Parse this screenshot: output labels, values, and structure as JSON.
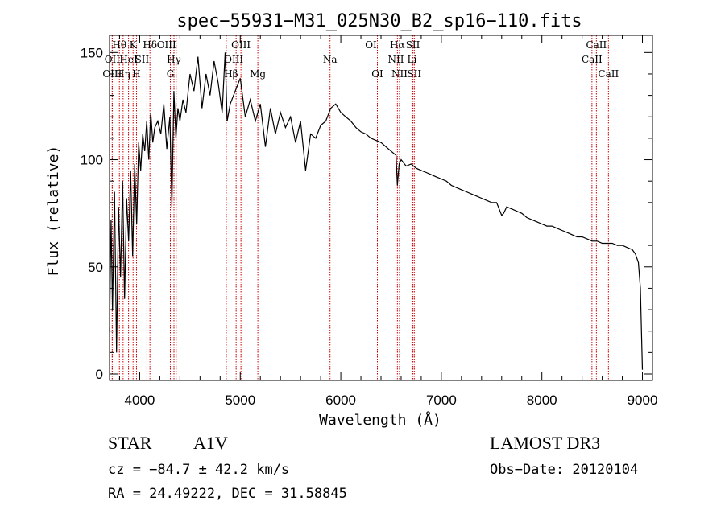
{
  "chart_data": {
    "type": "line",
    "title": "spec−55931−M31_025N30_B2_sp16−110.fits",
    "xlabel": "Wavelength (Å)",
    "ylabel": "Flux (relative)",
    "xlim": [
      3700,
      9100
    ],
    "ylim": [
      -3,
      158
    ],
    "x_ticks": [
      4000,
      5000,
      6000,
      7000,
      8000,
      9000
    ],
    "y_ticks": [
      0,
      50,
      100,
      150
    ],
    "series": [
      {
        "name": "flux",
        "x": [
          3700,
          3715,
          3730,
          3750,
          3770,
          3790,
          3810,
          3830,
          3850,
          3870,
          3890,
          3910,
          3930,
          3950,
          3970,
          3990,
          4010,
          4030,
          4050,
          4070,
          4090,
          4110,
          4130,
          4150,
          4180,
          4210,
          4240,
          4270,
          4300,
          4320,
          4340,
          4360,
          4380,
          4400,
          4430,
          4460,
          4500,
          4540,
          4580,
          4620,
          4660,
          4700,
          4740,
          4780,
          4820,
          4850,
          4870,
          4900,
          4950,
          5000,
          5050,
          5100,
          5150,
          5200,
          5250,
          5300,
          5350,
          5400,
          5450,
          5500,
          5550,
          5600,
          5650,
          5700,
          5750,
          5800,
          5850,
          5900,
          5950,
          6000,
          6050,
          6100,
          6150,
          6200,
          6250,
          6300,
          6350,
          6400,
          6450,
          6500,
          6550,
          6563,
          6580,
          6600,
          6650,
          6700,
          6750,
          6800,
          6850,
          6900,
          6950,
          7000,
          7050,
          7100,
          7150,
          7200,
          7250,
          7300,
          7350,
          7400,
          7450,
          7500,
          7550,
          7600,
          7620,
          7650,
          7700,
          7750,
          7800,
          7850,
          7900,
          7950,
          8000,
          8050,
          8100,
          8150,
          8200,
          8250,
          8300,
          8350,
          8400,
          8450,
          8500,
          8550,
          8600,
          8650,
          8700,
          8750,
          8800,
          8850,
          8900,
          8930,
          8960,
          8980,
          8990,
          9000
        ],
        "values": [
          20,
          72,
          30,
          85,
          10,
          78,
          45,
          90,
          35,
          82,
          62,
          95,
          55,
          98,
          70,
          108,
          95,
          112,
          104,
          118,
          100,
          122,
          108,
          115,
          118,
          112,
          126,
          105,
          120,
          78,
          132,
          110,
          124,
          118,
          128,
          122,
          140,
          132,
          148,
          124,
          140,
          130,
          146,
          136,
          122,
          150,
          118,
          126,
          132,
          138,
          120,
          128,
          118,
          126,
          106,
          124,
          112,
          122,
          115,
          120,
          108,
          118,
          95,
          112,
          110,
          116,
          118,
          124,
          126,
          122,
          120,
          118,
          115,
          113,
          112,
          110,
          109,
          108,
          106,
          104,
          102,
          88,
          98,
          100,
          97,
          98,
          96,
          95,
          94,
          93,
          92,
          91,
          90,
          88,
          87,
          86,
          85,
          84,
          83,
          82,
          81,
          80,
          80,
          74,
          75,
          78,
          77,
          76,
          75,
          73,
          72,
          71,
          70,
          69,
          69,
          68,
          67,
          66,
          65,
          64,
          64,
          63,
          62,
          62,
          61,
          61,
          61,
          60,
          60,
          59,
          58,
          56,
          52,
          40,
          20,
          2
        ]
      }
    ],
    "lines": [
      {
        "name": "Hθ",
        "x": 3798,
        "row": 1,
        "dx": 0
      },
      {
        "name": "OII",
        "x": 3727,
        "row": 2,
        "dx": 0
      },
      {
        "name": "OIII",
        "x": 3727,
        "row": 3,
        "dx": 0
      },
      {
        "name": "Hη",
        "x": 3835,
        "row": 3,
        "dx": 0
      },
      {
        "name": "HeI",
        "x": 3889,
        "row": 2,
        "dx": 0
      },
      {
        "name": "K",
        "x": 3934,
        "row": 1,
        "dx": 0
      },
      {
        "name": "H",
        "x": 3968,
        "row": 3,
        "dx": 0
      },
      {
        "name": "SII",
        "x": 4072,
        "row": 2,
        "dx": -6
      },
      {
        "name": "Hδ",
        "x": 4102,
        "row": 1,
        "dx": 0
      },
      {
        "name": "OIII",
        "x": 4363,
        "row": 1,
        "dx": -12
      },
      {
        "name": "Hγ",
        "x": 4341,
        "row": 2,
        "dx": 0
      },
      {
        "name": "G",
        "x": 4305,
        "row": 3,
        "dx": 0
      },
      {
        "name": "Hβ",
        "x": 4861,
        "row": 3,
        "dx": 6
      },
      {
        "name": "OIII",
        "x": 5007,
        "row": 1,
        "dx": 0
      },
      {
        "name": "OIII",
        "x": 4959,
        "row": 2,
        "dx": -3
      },
      {
        "name": "Mg",
        "x": 5175,
        "row": 3,
        "dx": 0
      },
      {
        "name": "Na",
        "x": 5893,
        "row": 2,
        "dx": 0
      },
      {
        "name": "OI",
        "x": 6300,
        "row": 1,
        "dx": 0
      },
      {
        "name": "OI",
        "x": 6364,
        "row": 3,
        "dx": 0
      },
      {
        "name": "Hα",
        "x": 6563,
        "row": 1,
        "dx": 0
      },
      {
        "name": "NII",
        "x": 6548,
        "row": 2,
        "dx": 0
      },
      {
        "name": "NII",
        "x": 6584,
        "row": 3,
        "dx": 0
      },
      {
        "name": "SII",
        "x": 6717,
        "row": 1,
        "dx": 0
      },
      {
        "name": "Li",
        "x": 6708,
        "row": 2,
        "dx": 0
      },
      {
        "name": "SII",
        "x": 6731,
        "row": 3,
        "dx": 0
      },
      {
        "name": "CaII",
        "x": 8542,
        "row": 1,
        "dx": 0
      },
      {
        "name": "CaII",
        "x": 8498,
        "row": 2,
        "dx": 0
      },
      {
        "name": "CaII",
        "x": 8662,
        "row": 3,
        "dx": 0
      }
    ]
  },
  "info": {
    "object_class": "STAR",
    "spectral_type": "A1V",
    "survey": "LAMOST DR3",
    "cz": "cz = −84.7 ± 42.2 km/s",
    "obs_date": "Obs−Date: 20120104",
    "radec": "RA =  24.49222, DEC =  31.58845"
  },
  "colors": {
    "line_marker": "#cc0000",
    "spectrum": "#000000",
    "axes": "#000000"
  }
}
